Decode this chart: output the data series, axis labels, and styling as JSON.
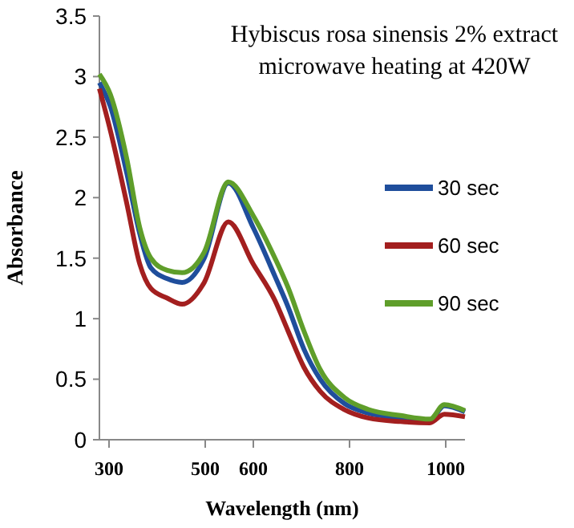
{
  "chart_data": {
    "type": "line",
    "title": "Hybiscus rosa sinensis 2% extract\nmicrowave heating at 420W",
    "xlabel": "Wavelength (nm)",
    "ylabel": "Absorbance",
    "x": [
      280,
      303,
      337,
      364,
      387,
      421,
      452,
      498,
      548,
      600,
      645,
      672,
      705,
      739,
      789,
      839,
      906,
      967,
      997,
      1040
    ],
    "series": [
      {
        "name": "30 sec",
        "color": "#1f4e9c",
        "values": [
          2.95,
          2.75,
          2.2,
          1.7,
          1.42,
          1.33,
          1.3,
          1.5,
          2.12,
          1.75,
          1.35,
          1.1,
          0.75,
          0.5,
          0.3,
          0.22,
          0.18,
          0.16,
          0.28,
          0.23
        ]
      },
      {
        "name": "60 sec",
        "color": "#a31f1f",
        "values": [
          2.9,
          2.55,
          1.95,
          1.45,
          1.25,
          1.17,
          1.12,
          1.3,
          1.8,
          1.45,
          1.15,
          0.9,
          0.6,
          0.4,
          0.25,
          0.18,
          0.15,
          0.14,
          0.21,
          0.19
        ]
      },
      {
        "name": "90 sec",
        "color": "#5f9e2a",
        "values": [
          3.02,
          2.85,
          2.32,
          1.75,
          1.5,
          1.4,
          1.38,
          1.55,
          2.13,
          1.85,
          1.5,
          1.26,
          0.9,
          0.58,
          0.35,
          0.25,
          0.2,
          0.17,
          0.29,
          0.24
        ]
      }
    ],
    "xlim": [
      280,
      1040
    ],
    "xticks": [
      300,
      500,
      600,
      800,
      1000
    ],
    "ylim": [
      0,
      3.5
    ],
    "yticks": [
      0,
      0.5,
      1,
      1.5,
      2,
      2.5,
      3,
      3.5
    ],
    "legend": "right",
    "grid": false,
    "marker": "none",
    "line_style": "solid"
  }
}
